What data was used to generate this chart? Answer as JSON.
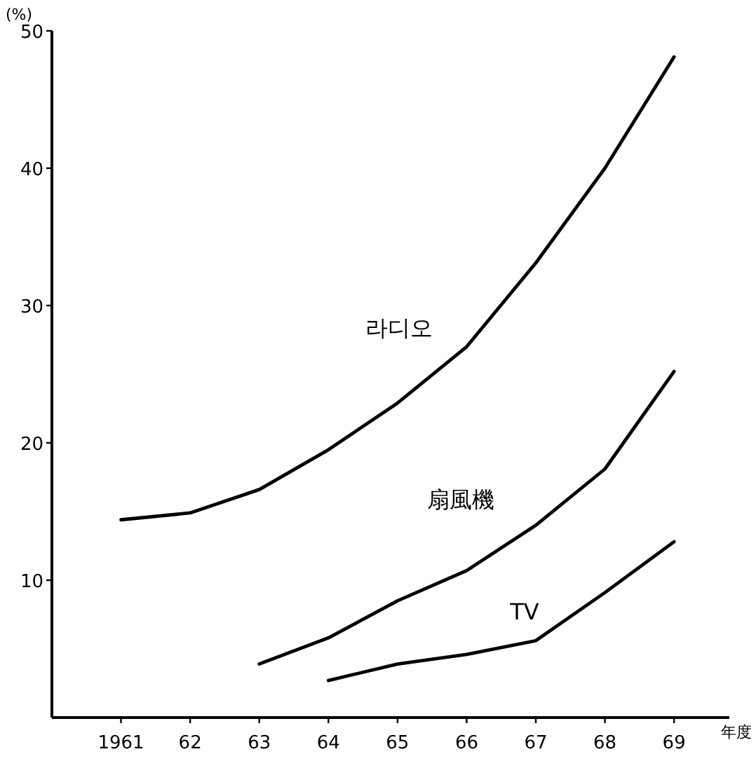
{
  "chart_data": {
    "type": "line",
    "xlabel": "年度",
    "ylabel": "(%)",
    "xlim": [
      1960,
      1969.8
    ],
    "ylim": [
      0,
      50
    ],
    "xticks": [
      {
        "value": 1961,
        "label": "1961"
      },
      {
        "value": 1962,
        "label": "62"
      },
      {
        "value": 1963,
        "label": "63"
      },
      {
        "value": 1964,
        "label": "64"
      },
      {
        "value": 1965,
        "label": "65"
      },
      {
        "value": 1966,
        "label": "66"
      },
      {
        "value": 1967,
        "label": "67"
      },
      {
        "value": 1968,
        "label": "68"
      },
      {
        "value": 1969,
        "label": "69"
      }
    ],
    "yticks": [
      10,
      20,
      30,
      40,
      50
    ],
    "grid": false,
    "marker": "none",
    "line_style": "solid",
    "series": [
      {
        "name": "라디오",
        "color": "#000000",
        "x": [
          1961,
          1962,
          1963,
          1964,
          1965,
          1966,
          1967,
          1968,
          1969
        ],
        "values": [
          14.4,
          14.9,
          16.6,
          19.5,
          22.9,
          27.0,
          33.1,
          40.0,
          48.1
        ]
      },
      {
        "name": "扇風機",
        "color": "#000000",
        "x": [
          1963,
          1964,
          1965,
          1966,
          1967,
          1968,
          1969
        ],
        "values": [
          3.9,
          5.8,
          8.5,
          10.7,
          14.0,
          18.1,
          25.2
        ]
      },
      {
        "name": "TV",
        "color": "#000000",
        "x": [
          1964,
          1965,
          1966,
          1967,
          1968,
          1969
        ],
        "values": [
          2.7,
          3.9,
          4.6,
          5.6,
          9.1,
          12.8
        ]
      }
    ]
  }
}
